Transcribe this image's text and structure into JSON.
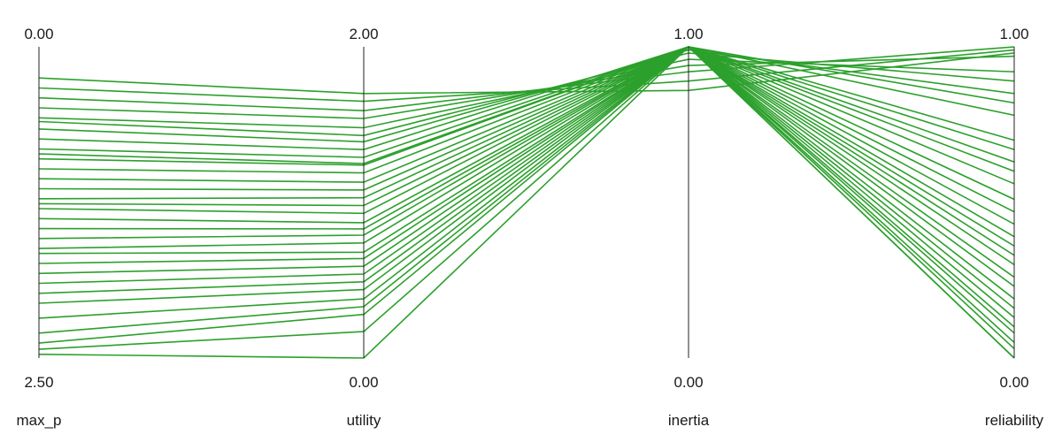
{
  "chart_data": {
    "type": "parallel-coordinates",
    "line_color": "#2ca02c",
    "axes": [
      {
        "name": "max_p",
        "top_label": "0.00",
        "bottom_label": "2.50",
        "range_top": 0.0,
        "range_bottom": 2.5
      },
      {
        "name": "utility",
        "top_label": "2.00",
        "bottom_label": "0.00",
        "range_top": 2.0,
        "range_bottom": 0.0
      },
      {
        "name": "inertia",
        "top_label": "1.00",
        "bottom_label": "0.00",
        "range_top": 1.0,
        "range_bottom": 0.0
      },
      {
        "name": "reliability",
        "top_label": "1.00",
        "bottom_label": "0.00",
        "range_top": 1.0,
        "range_bottom": 0.0
      }
    ],
    "lines": [
      [
        0.25,
        1.7,
        0.86,
        0.98
      ],
      [
        0.33,
        1.65,
        0.89,
        0.99
      ],
      [
        0.41,
        1.59,
        0.92,
        1.0
      ],
      [
        0.49,
        1.54,
        0.94,
        0.97
      ],
      [
        0.57,
        1.48,
        0.96,
        0.92
      ],
      [
        0.6,
        1.43,
        0.98,
        0.89
      ],
      [
        0.66,
        1.39,
        0.99,
        0.85
      ],
      [
        0.74,
        1.34,
        1.0,
        0.82
      ],
      [
        0.82,
        1.29,
        1.0,
        0.78
      ],
      [
        0.86,
        1.25,
        1.0,
        0.7
      ],
      [
        0.9,
        1.24,
        1.0,
        0.67
      ],
      [
        0.98,
        1.19,
        1.0,
        0.63
      ],
      [
        1.06,
        1.13,
        1.0,
        0.6
      ],
      [
        1.14,
        1.08,
        1.0,
        0.56
      ],
      [
        1.22,
        1.03,
        1.0,
        0.51
      ],
      [
        1.26,
        0.98,
        1.0,
        0.47
      ],
      [
        1.3,
        0.93,
        1.0,
        0.43
      ],
      [
        1.38,
        0.87,
        1.0,
        0.39
      ],
      [
        1.46,
        0.83,
        1.0,
        0.36
      ],
      [
        1.54,
        0.79,
        1.0,
        0.33
      ],
      [
        1.62,
        0.74,
        1.0,
        0.3
      ],
      [
        1.66,
        0.68,
        1.0,
        0.26
      ],
      [
        1.74,
        0.64,
        1.0,
        0.23
      ],
      [
        1.82,
        0.59,
        1.0,
        0.19
      ],
      [
        1.9,
        0.54,
        1.0,
        0.16
      ],
      [
        1.98,
        0.49,
        1.0,
        0.13
      ],
      [
        2.06,
        0.44,
        1.0,
        0.1
      ],
      [
        2.18,
        0.38,
        1.0,
        0.08
      ],
      [
        2.3,
        0.33,
        1.0,
        0.05
      ],
      [
        2.38,
        0.28,
        1.0,
        0.03
      ],
      [
        2.43,
        0.17,
        1.0,
        0.0
      ],
      [
        2.47,
        0.0,
        1.0,
        0.0
      ]
    ]
  }
}
